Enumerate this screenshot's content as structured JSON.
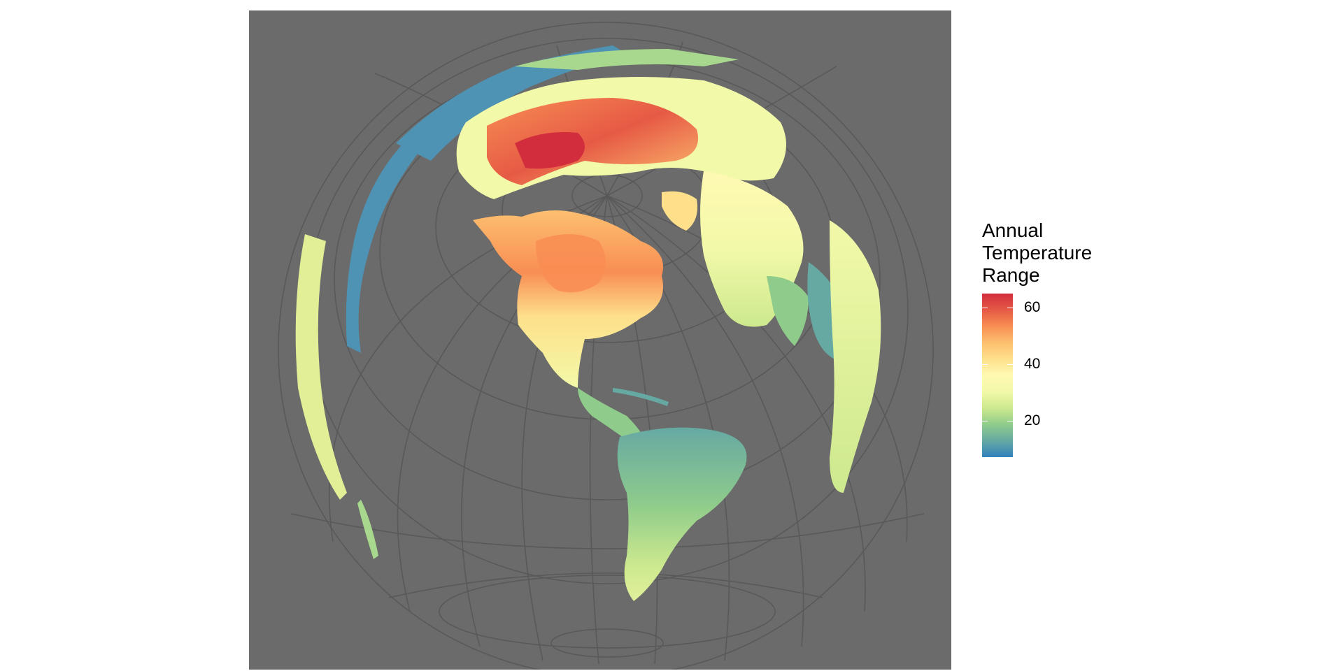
{
  "legend": {
    "title": "Annual\nTemperature\nRange",
    "min": 7,
    "max": 65,
    "ticks": [
      {
        "value": 60,
        "label": "60"
      },
      {
        "value": 40,
        "label": "40"
      },
      {
        "value": 20,
        "label": "20"
      }
    ],
    "palette": [
      "#3181bd",
      "#66a9a3",
      "#8fcc8b",
      "#cde98e",
      "#f2f9a8",
      "#fff9b3",
      "#fee08b",
      "#fdbf6f",
      "#f88e53",
      "#e65a45",
      "#d12d3d"
    ]
  },
  "map": {
    "panel_color": "#6b6b6b",
    "ocean": "none",
    "graticule_color": "#5a5a5a",
    "projection": "orthographic"
  }
}
